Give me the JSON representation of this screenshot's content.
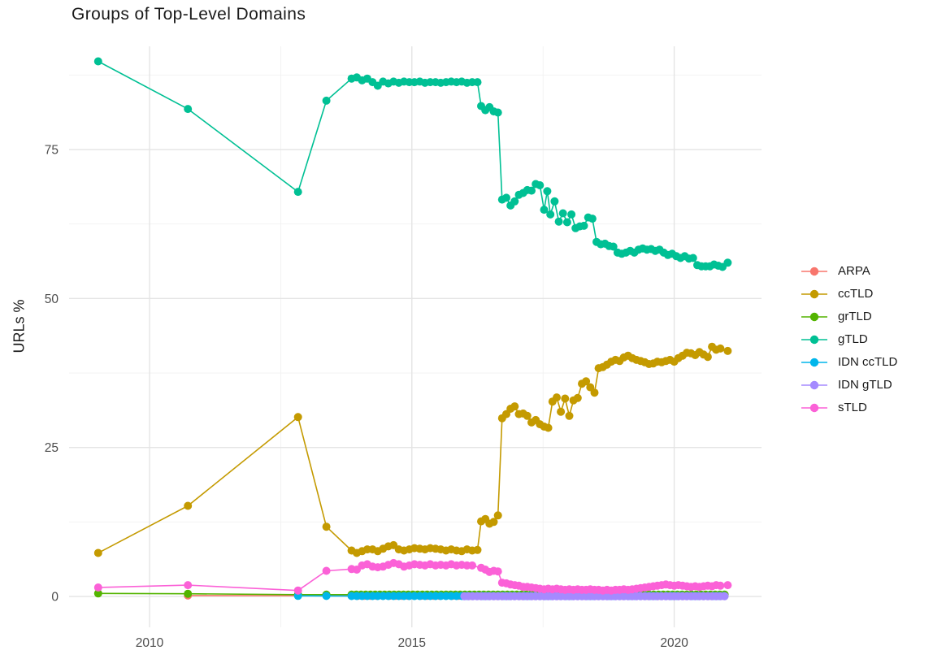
{
  "title": "Groups of Top-Level Domains",
  "axes": {
    "y_label": "URLs %",
    "y_ticks": [
      "0",
      "25",
      "50",
      "75"
    ],
    "x_ticks": [
      "2010",
      "2015",
      "2020"
    ]
  },
  "legend": {
    "items": [
      {
        "label": "ARPA",
        "color": "#F8766D"
      },
      {
        "label": "ccTLD",
        "color": "#C49A00"
      },
      {
        "label": "grTLD",
        "color": "#53B400"
      },
      {
        "label": "gTLD",
        "color": "#00C094"
      },
      {
        "label": "IDN ccTLD",
        "color": "#00B6EB"
      },
      {
        "label": "IDN gTLD",
        "color": "#A58AFF"
      },
      {
        "label": "sTLD",
        "color": "#FB61D7"
      }
    ]
  },
  "colors": {
    "grid_major": "#e4e4e4",
    "grid_minor": "#f1f1f1",
    "tick_text": "#4d4d4d"
  },
  "chart_data": {
    "type": "line",
    "title": "Groups of Top-Level Domains",
    "xlabel": "",
    "ylabel": "URLs %",
    "grid": true,
    "legend_position": "right",
    "x_domain": [
      2008.466,
      2021.664
    ],
    "y_domain": [
      -5.18,
      92.32
    ],
    "x_major": [
      2010,
      2015,
      2020
    ],
    "x_minor": [
      2012.5,
      2017.5
    ],
    "y_major": [
      0,
      25,
      50,
      75
    ],
    "y_minor": [
      12.5,
      37.5,
      62.5,
      87.5
    ],
    "series": [
      {
        "name": "ARPA",
        "color": "#F8766D",
        "points": [
          [
            2010.73,
            0.15
          ],
          [
            2012.83,
            0.12
          ]
        ],
        "flat": {
          "from": 2013.85,
          "to": 2021.02,
          "step": 0.12,
          "value": 0.1
        }
      },
      {
        "name": "ccTLD",
        "color": "#C49A00",
        "points": [
          [
            2009.02,
            7.3
          ],
          [
            2010.73,
            15.2
          ],
          [
            2012.83,
            30.1
          ],
          [
            2013.37,
            11.7
          ],
          [
            2013.85,
            7.7
          ],
          [
            2013.95,
            7.3
          ],
          [
            2014.05,
            7.6
          ],
          [
            2014.15,
            7.9
          ],
          [
            2014.25,
            7.9
          ],
          [
            2014.35,
            7.6
          ],
          [
            2014.45,
            8.0
          ],
          [
            2014.55,
            8.4
          ],
          [
            2014.65,
            8.6
          ],
          [
            2014.75,
            7.9
          ],
          [
            2014.85,
            7.7
          ],
          [
            2014.95,
            7.9
          ],
          [
            2015.05,
            8.1
          ],
          [
            2015.15,
            8.0
          ],
          [
            2015.25,
            7.9
          ],
          [
            2015.35,
            8.1
          ],
          [
            2015.45,
            8.0
          ],
          [
            2015.55,
            7.9
          ],
          [
            2015.65,
            7.7
          ],
          [
            2015.75,
            7.9
          ],
          [
            2015.85,
            7.7
          ],
          [
            2015.95,
            7.6
          ],
          [
            2016.05,
            7.9
          ],
          [
            2016.15,
            7.7
          ],
          [
            2016.25,
            7.8
          ],
          [
            2016.32,
            12.6
          ],
          [
            2016.4,
            13.0
          ],
          [
            2016.48,
            12.2
          ],
          [
            2016.56,
            12.5
          ],
          [
            2016.64,
            13.6
          ],
          [
            2016.72,
            29.9
          ],
          [
            2016.8,
            30.6
          ],
          [
            2016.88,
            31.5
          ],
          [
            2016.96,
            31.9
          ],
          [
            2017.04,
            30.6
          ],
          [
            2017.12,
            30.7
          ],
          [
            2017.2,
            30.3
          ],
          [
            2017.28,
            29.2
          ],
          [
            2017.36,
            29.6
          ],
          [
            2017.44,
            28.9
          ],
          [
            2017.52,
            28.5
          ],
          [
            2017.6,
            28.3
          ],
          [
            2017.68,
            32.7
          ],
          [
            2017.76,
            33.4
          ],
          [
            2017.84,
            31.0
          ],
          [
            2017.92,
            33.2
          ],
          [
            2018.0,
            30.3
          ],
          [
            2018.08,
            32.9
          ],
          [
            2018.16,
            33.3
          ],
          [
            2018.24,
            35.7
          ],
          [
            2018.32,
            36.1
          ],
          [
            2018.4,
            35.1
          ],
          [
            2018.48,
            34.2
          ],
          [
            2018.56,
            38.3
          ],
          [
            2018.64,
            38.5
          ],
          [
            2018.72,
            38.9
          ],
          [
            2018.8,
            39.4
          ],
          [
            2018.88,
            39.7
          ],
          [
            2018.96,
            39.5
          ],
          [
            2019.04,
            40.1
          ],
          [
            2019.12,
            40.4
          ],
          [
            2019.2,
            40.0
          ],
          [
            2019.28,
            39.7
          ],
          [
            2019.36,
            39.5
          ],
          [
            2019.44,
            39.3
          ],
          [
            2019.52,
            39.0
          ],
          [
            2019.6,
            39.1
          ],
          [
            2019.68,
            39.4
          ],
          [
            2019.76,
            39.3
          ],
          [
            2019.84,
            39.5
          ],
          [
            2019.92,
            39.7
          ],
          [
            2020.0,
            39.4
          ],
          [
            2020.08,
            40.0
          ],
          [
            2020.16,
            40.4
          ],
          [
            2020.24,
            40.9
          ],
          [
            2020.32,
            40.8
          ],
          [
            2020.4,
            40.5
          ],
          [
            2020.48,
            41.0
          ],
          [
            2020.56,
            40.6
          ],
          [
            2020.64,
            40.2
          ],
          [
            2020.72,
            41.9
          ],
          [
            2020.8,
            41.4
          ],
          [
            2020.88,
            41.6
          ],
          [
            2021.02,
            41.2
          ]
        ]
      },
      {
        "name": "grTLD",
        "color": "#53B400",
        "points": [
          [
            2009.02,
            0.5
          ],
          [
            2010.73,
            0.45
          ],
          [
            2012.83,
            0.3
          ],
          [
            2013.37,
            0.3
          ]
        ],
        "flat": {
          "from": 2013.85,
          "to": 2021.02,
          "step": 0.09,
          "value": 0.3
        }
      },
      {
        "name": "gTLD",
        "color": "#00C094",
        "points": [
          [
            2009.02,
            89.8
          ],
          [
            2010.73,
            81.8
          ],
          [
            2012.83,
            67.9
          ],
          [
            2013.37,
            83.2
          ],
          [
            2013.85,
            86.9
          ],
          [
            2013.95,
            87.1
          ],
          [
            2014.05,
            86.6
          ],
          [
            2014.15,
            86.9
          ],
          [
            2014.25,
            86.3
          ],
          [
            2014.35,
            85.7
          ],
          [
            2014.45,
            86.4
          ],
          [
            2014.55,
            86.1
          ],
          [
            2014.65,
            86.4
          ],
          [
            2014.75,
            86.2
          ],
          [
            2014.85,
            86.4
          ],
          [
            2014.95,
            86.3
          ],
          [
            2015.05,
            86.3
          ],
          [
            2015.15,
            86.4
          ],
          [
            2015.25,
            86.2
          ],
          [
            2015.35,
            86.3
          ],
          [
            2015.45,
            86.3
          ],
          [
            2015.55,
            86.2
          ],
          [
            2015.65,
            86.3
          ],
          [
            2015.75,
            86.4
          ],
          [
            2015.85,
            86.3
          ],
          [
            2015.95,
            86.4
          ],
          [
            2016.05,
            86.2
          ],
          [
            2016.15,
            86.3
          ],
          [
            2016.25,
            86.3
          ],
          [
            2016.32,
            82.3
          ],
          [
            2016.4,
            81.6
          ],
          [
            2016.48,
            82.1
          ],
          [
            2016.56,
            81.4
          ],
          [
            2016.64,
            81.2
          ],
          [
            2016.72,
            66.6
          ],
          [
            2016.8,
            66.9
          ],
          [
            2016.88,
            65.6
          ],
          [
            2016.96,
            66.3
          ],
          [
            2017.04,
            67.4
          ],
          [
            2017.12,
            67.7
          ],
          [
            2017.2,
            68.2
          ],
          [
            2017.28,
            68.1
          ],
          [
            2017.36,
            69.2
          ],
          [
            2017.44,
            69.0
          ],
          [
            2017.52,
            64.9
          ],
          [
            2017.58,
            68.0
          ],
          [
            2017.64,
            64.1
          ],
          [
            2017.72,
            66.3
          ],
          [
            2017.8,
            62.9
          ],
          [
            2017.88,
            64.3
          ],
          [
            2017.96,
            62.8
          ],
          [
            2018.04,
            64.1
          ],
          [
            2018.12,
            61.8
          ],
          [
            2018.2,
            62.1
          ],
          [
            2018.28,
            62.2
          ],
          [
            2018.36,
            63.6
          ],
          [
            2018.44,
            63.4
          ],
          [
            2018.52,
            59.5
          ],
          [
            2018.6,
            59.1
          ],
          [
            2018.68,
            59.2
          ],
          [
            2018.76,
            58.8
          ],
          [
            2018.84,
            58.7
          ],
          [
            2018.92,
            57.7
          ],
          [
            2019.0,
            57.5
          ],
          [
            2019.08,
            57.7
          ],
          [
            2019.16,
            58.0
          ],
          [
            2019.24,
            57.7
          ],
          [
            2019.32,
            58.2
          ],
          [
            2019.4,
            58.4
          ],
          [
            2019.48,
            58.2
          ],
          [
            2019.56,
            58.3
          ],
          [
            2019.64,
            58.0
          ],
          [
            2019.72,
            58.2
          ],
          [
            2019.8,
            57.7
          ],
          [
            2019.88,
            57.3
          ],
          [
            2019.96,
            57.5
          ],
          [
            2020.04,
            57.1
          ],
          [
            2020.12,
            56.8
          ],
          [
            2020.2,
            57.1
          ],
          [
            2020.28,
            56.7
          ],
          [
            2020.36,
            56.8
          ],
          [
            2020.44,
            55.6
          ],
          [
            2020.52,
            55.4
          ],
          [
            2020.6,
            55.4
          ],
          [
            2020.68,
            55.4
          ],
          [
            2020.76,
            55.7
          ],
          [
            2020.84,
            55.5
          ],
          [
            2020.92,
            55.3
          ],
          [
            2021.02,
            56.0
          ]
        ]
      },
      {
        "name": "IDN ccTLD",
        "color": "#00B6EB",
        "points": [
          [
            2012.83,
            0.1
          ],
          [
            2013.37,
            0.08
          ]
        ],
        "flat": {
          "from": 2013.85,
          "to": 2021.02,
          "step": 0.1,
          "value": 0.07
        }
      },
      {
        "name": "IDN gTLD",
        "color": "#A58AFF",
        "points": [],
        "flat": {
          "from": 2016.0,
          "to": 2021.02,
          "step": 0.08,
          "value": 0.04
        }
      },
      {
        "name": "sTLD",
        "color": "#FB61D7",
        "points": [
          [
            2009.02,
            1.5
          ],
          [
            2010.73,
            1.9
          ],
          [
            2012.83,
            1.0
          ],
          [
            2013.37,
            4.3
          ],
          [
            2013.85,
            4.6
          ],
          [
            2013.95,
            4.5
          ],
          [
            2014.05,
            5.2
          ],
          [
            2014.15,
            5.4
          ],
          [
            2014.25,
            5.0
          ],
          [
            2014.35,
            4.9
          ],
          [
            2014.45,
            5.0
          ],
          [
            2014.55,
            5.3
          ],
          [
            2014.65,
            5.6
          ],
          [
            2014.75,
            5.4
          ],
          [
            2014.85,
            5.0
          ],
          [
            2014.95,
            5.2
          ],
          [
            2015.05,
            5.4
          ],
          [
            2015.15,
            5.3
          ],
          [
            2015.25,
            5.2
          ],
          [
            2015.35,
            5.4
          ],
          [
            2015.45,
            5.2
          ],
          [
            2015.55,
            5.3
          ],
          [
            2015.65,
            5.2
          ],
          [
            2015.75,
            5.4
          ],
          [
            2015.85,
            5.2
          ],
          [
            2015.95,
            5.3
          ],
          [
            2016.05,
            5.2
          ],
          [
            2016.15,
            5.2
          ],
          [
            2016.32,
            4.8
          ],
          [
            2016.4,
            4.5
          ],
          [
            2016.48,
            4.1
          ],
          [
            2016.56,
            4.3
          ],
          [
            2016.64,
            4.2
          ],
          [
            2016.72,
            2.3
          ],
          [
            2016.8,
            2.2
          ],
          [
            2016.88,
            2.0
          ],
          [
            2016.96,
            1.9
          ],
          [
            2017.04,
            1.8
          ],
          [
            2017.12,
            1.6
          ],
          [
            2017.2,
            1.6
          ],
          [
            2017.28,
            1.5
          ],
          [
            2017.36,
            1.4
          ],
          [
            2017.44,
            1.3
          ],
          [
            2017.52,
            1.2
          ],
          [
            2017.6,
            1.3
          ],
          [
            2017.68,
            1.2
          ],
          [
            2017.76,
            1.3
          ],
          [
            2017.84,
            1.2
          ],
          [
            2017.92,
            1.1
          ],
          [
            2018.0,
            1.2
          ],
          [
            2018.08,
            1.1
          ],
          [
            2018.16,
            1.2
          ],
          [
            2018.24,
            1.1
          ],
          [
            2018.32,
            1.1
          ],
          [
            2018.4,
            1.2
          ],
          [
            2018.48,
            1.1
          ],
          [
            2018.56,
            1.1
          ],
          [
            2018.64,
            1.0
          ],
          [
            2018.72,
            1.1
          ],
          [
            2018.8,
            1.0
          ],
          [
            2018.88,
            1.1
          ],
          [
            2018.96,
            1.1
          ],
          [
            2019.04,
            1.2
          ],
          [
            2019.12,
            1.1
          ],
          [
            2019.2,
            1.2
          ],
          [
            2019.28,
            1.3
          ],
          [
            2019.36,
            1.4
          ],
          [
            2019.44,
            1.5
          ],
          [
            2019.52,
            1.6
          ],
          [
            2019.6,
            1.7
          ],
          [
            2019.68,
            1.8
          ],
          [
            2019.76,
            1.9
          ],
          [
            2019.84,
            2.0
          ],
          [
            2019.92,
            1.9
          ],
          [
            2020.0,
            1.8
          ],
          [
            2020.08,
            1.9
          ],
          [
            2020.16,
            1.8
          ],
          [
            2020.24,
            1.7
          ],
          [
            2020.32,
            1.6
          ],
          [
            2020.4,
            1.7
          ],
          [
            2020.48,
            1.6
          ],
          [
            2020.56,
            1.7
          ],
          [
            2020.64,
            1.8
          ],
          [
            2020.72,
            1.7
          ],
          [
            2020.8,
            1.9
          ],
          [
            2020.88,
            1.8
          ],
          [
            2021.02,
            1.9
          ]
        ]
      }
    ]
  }
}
